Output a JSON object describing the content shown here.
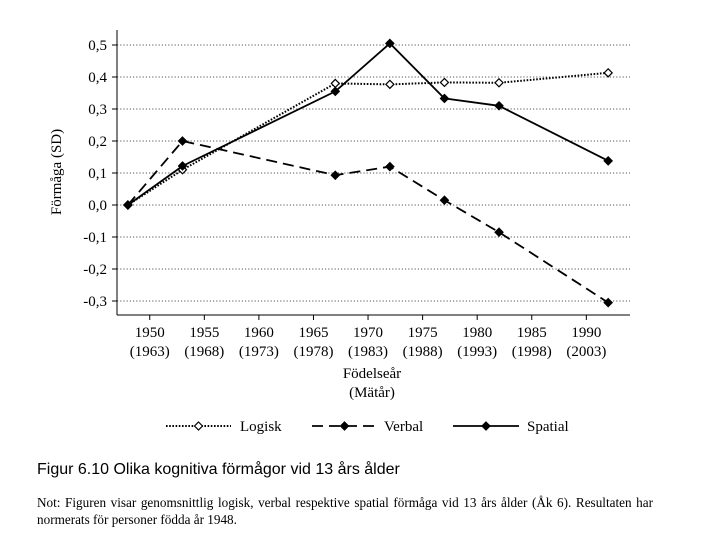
{
  "chart_data": {
    "type": "line",
    "ylabel": "Förmåga (SD)",
    "xlabel_line1": "Födelseår",
    "xlabel_line2": "(Mätår)",
    "ylim": [
      -0.3,
      0.5
    ],
    "y_ticks": [
      {
        "value": 0.5,
        "label": "0,5"
      },
      {
        "value": 0.4,
        "label": "0,4"
      },
      {
        "value": 0.3,
        "label": "0,3"
      },
      {
        "value": 0.2,
        "label": "0,2"
      },
      {
        "value": 0.1,
        "label": "0,1"
      },
      {
        "value": 0.0,
        "label": "0,0"
      },
      {
        "value": -0.1,
        "label": "-0,1"
      },
      {
        "value": -0.2,
        "label": "-0,2"
      },
      {
        "value": -0.3,
        "label": "-0,3"
      }
    ],
    "xlim": [
      1947,
      1994
    ],
    "x_ticks": [
      {
        "value": 1950,
        "label": "1950",
        "sub": "(1963)"
      },
      {
        "value": 1955,
        "label": "1955",
        "sub": "(1968)"
      },
      {
        "value": 1960,
        "label": "1960",
        "sub": "(1973)"
      },
      {
        "value": 1965,
        "label": "1965",
        "sub": "(1978)"
      },
      {
        "value": 1970,
        "label": "1970",
        "sub": "(1983)"
      },
      {
        "value": 1975,
        "label": "1975",
        "sub": "(1988)"
      },
      {
        "value": 1980,
        "label": "1980",
        "sub": "(1993)"
      },
      {
        "value": 1985,
        "label": "1985",
        "sub": "(1998)"
      },
      {
        "value": 1990,
        "label": "1990",
        "sub": "(2003)"
      }
    ],
    "grid": "horizontal dotted",
    "legend_position": "bottom",
    "series": [
      {
        "name": "Logisk",
        "style": "dotted",
        "marker": "open-diamond",
        "color": "#000000",
        "points": [
          [
            1948,
            0.0
          ],
          [
            1953,
            0.11
          ],
          [
            1967,
            0.38
          ],
          [
            1972,
            0.377
          ],
          [
            1977,
            0.383
          ],
          [
            1982,
            0.382
          ],
          [
            1992,
            0.413
          ]
        ]
      },
      {
        "name": "Verbal",
        "style": "dashed",
        "marker": "filled-diamond",
        "color": "#000000",
        "points": [
          [
            1948,
            0.0
          ],
          [
            1953,
            0.2
          ],
          [
            1967,
            0.093
          ],
          [
            1972,
            0.12
          ],
          [
            1977,
            0.015
          ],
          [
            1982,
            -0.085
          ],
          [
            1992,
            -0.305
          ]
        ]
      },
      {
        "name": "Spatial",
        "style": "solid",
        "marker": "filled-diamond",
        "color": "#000000",
        "points": [
          [
            1948,
            0.0
          ],
          [
            1953,
            0.122
          ],
          [
            1967,
            0.355
          ],
          [
            1972,
            0.505
          ],
          [
            1977,
            0.333
          ],
          [
            1982,
            0.31
          ],
          [
            1992,
            0.138
          ]
        ]
      }
    ]
  },
  "caption": "Figur 6.10 Olika kognitiva förmågor vid 13 års ålder",
  "note": "Not: Figuren visar genomsnittlig logisk, verbal respektive spatial förmåga vid 13 års ålder (Åk 6). Resultaten har normerats för personer födda år 1948."
}
